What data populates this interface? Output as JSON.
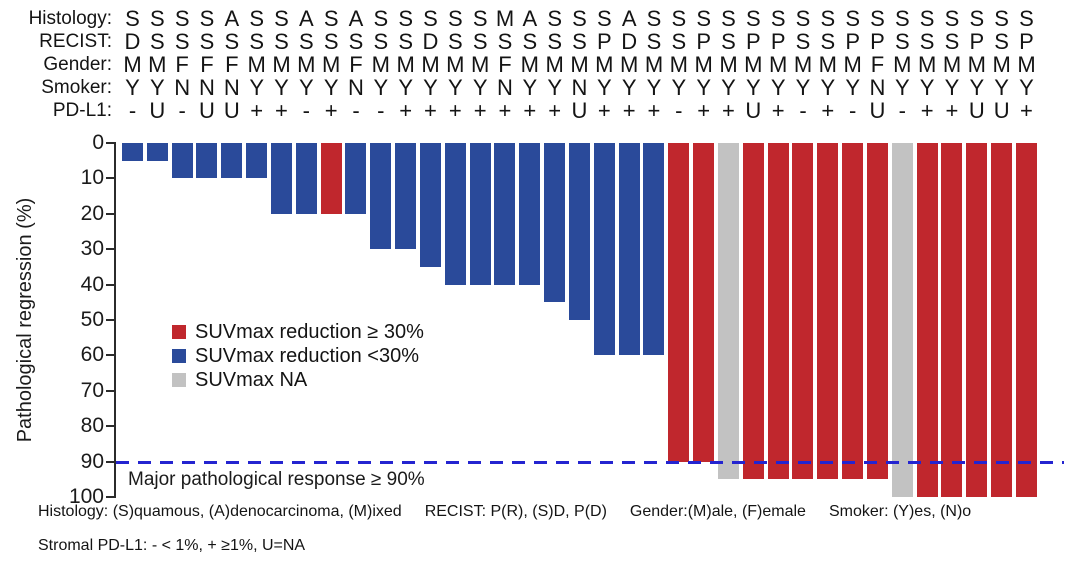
{
  "chart_data": {
    "type": "bar",
    "orientation": "vertical-downward",
    "title": "",
    "ylabel": "Pathological regression (%)",
    "ylim": [
      0,
      100
    ],
    "y_inverted": true,
    "yticks": [
      0,
      10,
      20,
      30,
      40,
      50,
      60,
      70,
      80,
      90,
      100
    ],
    "grid": "off",
    "n_patients": 37,
    "values": [
      5,
      5,
      10,
      10,
      10,
      10,
      20,
      20,
      20,
      20,
      30,
      30,
      35,
      40,
      40,
      40,
      40,
      45,
      50,
      60,
      60,
      60,
      90,
      90,
      95,
      95,
      95,
      95,
      95,
      95,
      95,
      100,
      100,
      100,
      100,
      100,
      100
    ],
    "suv_group": [
      "lt30",
      "lt30",
      "lt30",
      "lt30",
      "lt30",
      "lt30",
      "lt30",
      "lt30",
      "ge30",
      "lt30",
      "lt30",
      "lt30",
      "lt30",
      "lt30",
      "lt30",
      "lt30",
      "lt30",
      "lt30",
      "lt30",
      "lt30",
      "lt30",
      "lt30",
      "ge30",
      "ge30",
      "na",
      "ge30",
      "ge30",
      "ge30",
      "ge30",
      "ge30",
      "ge30",
      "na",
      "ge30",
      "ge30",
      "ge30",
      "ge30",
      "ge30"
    ],
    "group_colors": {
      "ge30": "#C0272D",
      "lt30": "#2A4A9A",
      "na": "#C2C2C2"
    },
    "legend": [
      {
        "key": "ge30",
        "color": "#C0272D",
        "label": "SUVmax reduction ≥ 30%"
      },
      {
        "key": "lt30",
        "color": "#2A4A9A",
        "label": "SUVmax reduction <30%"
      },
      {
        "key": "na",
        "color": "#C2C2C2",
        "label": "SUVmax NA"
      }
    ],
    "reference_line": {
      "y": 90,
      "style": "dashed",
      "color": "#2424D0",
      "label": "Major pathological response ≥ 90%"
    },
    "clinical_rows": [
      {
        "key": "histology",
        "label": "Histology:",
        "values": [
          "S",
          "S",
          "S",
          "S",
          "A",
          "S",
          "S",
          "A",
          "S",
          "A",
          "S",
          "S",
          "S",
          "S",
          "S",
          "M",
          "A",
          "S",
          "S",
          "S",
          "A",
          "S",
          "S",
          "S",
          "S",
          "S",
          "S",
          "S",
          "S",
          "S",
          "S",
          "S",
          "S",
          "S",
          "S",
          "S",
          "S"
        ]
      },
      {
        "key": "recist",
        "label": "RECIST:",
        "values": [
          "D",
          "S",
          "S",
          "S",
          "S",
          "S",
          "S",
          "S",
          "S",
          "S",
          "S",
          "S",
          "D",
          "S",
          "S",
          "S",
          "S",
          "S",
          "S",
          "P",
          "D",
          "S",
          "S",
          "P",
          "S",
          "P",
          "P",
          "S",
          "S",
          "P",
          "P",
          "S",
          "S",
          "S",
          "P",
          "S",
          "P"
        ]
      },
      {
        "key": "gender",
        "label": "Gender:",
        "values": [
          "M",
          "M",
          "F",
          "F",
          "F",
          "M",
          "M",
          "M",
          "M",
          "F",
          "M",
          "M",
          "M",
          "M",
          "M",
          "F",
          "M",
          "M",
          "M",
          "M",
          "M",
          "M",
          "M",
          "M",
          "M",
          "M",
          "M",
          "M",
          "M",
          "M",
          "F",
          "M",
          "M",
          "M",
          "M",
          "M",
          "M"
        ]
      },
      {
        "key": "smoker",
        "label": "Smoker:",
        "values": [
          "Y",
          "Y",
          "N",
          "N",
          "N",
          "Y",
          "Y",
          "Y",
          "Y",
          "N",
          "Y",
          "Y",
          "Y",
          "Y",
          "Y",
          "N",
          "Y",
          "Y",
          "N",
          "Y",
          "Y",
          "Y",
          "Y",
          "Y",
          "Y",
          "Y",
          "Y",
          "Y",
          "Y",
          "Y",
          "N",
          "Y",
          "Y",
          "Y",
          "Y",
          "Y",
          "Y"
        ]
      },
      {
        "key": "pdl1",
        "label": "PD-L1:",
        "values": [
          "-",
          "U",
          "-",
          "U",
          "U",
          "+",
          "+",
          "-",
          "+",
          "-",
          "-",
          "+",
          "+",
          "+",
          "+",
          "+",
          "+",
          "+",
          "U",
          "+",
          "+",
          "+",
          "-",
          "+",
          "+",
          "U",
          "+",
          "-",
          "+",
          "-",
          "U",
          "-",
          "+",
          "+",
          "U",
          "U",
          "+"
        ]
      }
    ]
  },
  "footnotes": {
    "line1_segments": [
      "Histology: (S)quamous, (A)denocarcinoma, (M)ixed",
      "RECIST: P(R), (S)D, P(D)",
      "Gender:(M)ale, (F)emale",
      "Smoker: (Y)es, (N)o"
    ],
    "line2": "Stromal PD-L1: - < 1%, + ≥1%, U=NA"
  }
}
